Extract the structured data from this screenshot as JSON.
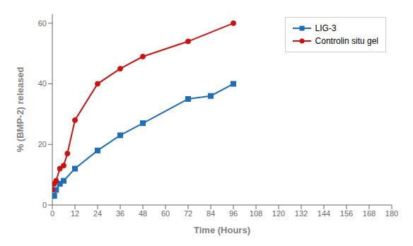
{
  "chart_data": {
    "type": "line",
    "xlabel": "Time (Hours)",
    "ylabel": "% (BMP-2) released",
    "series": [
      {
        "name": "LIG-3",
        "color": "#1f6db5",
        "marker": "square",
        "x": [
          0,
          1,
          2,
          4,
          6,
          12,
          24,
          36,
          48,
          72,
          84,
          96
        ],
        "values": [
          3,
          3,
          5,
          7,
          8,
          12,
          18,
          23,
          27,
          35,
          36,
          40
        ]
      },
      {
        "name": "Controlin situ gel",
        "color": "#cc1111",
        "marker": "circle",
        "x": [
          0,
          1,
          2,
          4,
          6,
          8,
          12,
          24,
          36,
          48,
          72,
          96
        ],
        "values": [
          5,
          7,
          8,
          12,
          13,
          17,
          28,
          40,
          45,
          49,
          54,
          60
        ]
      }
    ],
    "xlim": [
      0,
      180
    ],
    "ylim": [
      0,
      63
    ],
    "xticks": [
      0,
      12,
      24,
      36,
      48,
      60,
      72,
      84,
      96,
      108,
      120,
      132,
      144,
      156,
      168,
      180
    ],
    "yticks": [
      0,
      20,
      40,
      60
    ],
    "legend": "upper right",
    "grid": false
  }
}
